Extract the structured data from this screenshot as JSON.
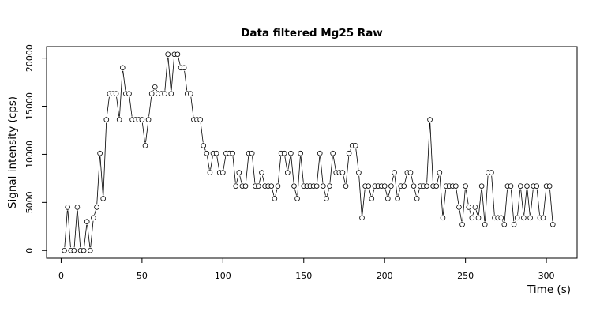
{
  "chart_data": {
    "type": "line",
    "title": "Data filtered Mg25 Raw",
    "xlabel": "Time (s)",
    "ylabel": "Signal intensity (cps)",
    "xlim": [
      -9,
      319
    ],
    "ylim": [
      -800,
      21200
    ],
    "xticks": [
      0,
      50,
      100,
      150,
      200,
      250,
      300
    ],
    "yticks": [
      0,
      5000,
      10000,
      15000,
      20000
    ],
    "grid": false,
    "marker": "open-circle",
    "line_style": "overplotted (type b)",
    "series": [
      {
        "x": [
          2,
          4,
          6,
          8,
          10,
          12,
          14,
          16,
          18,
          20,
          22,
          24,
          26,
          28,
          30,
          32,
          34,
          36,
          38,
          40,
          42,
          44,
          46,
          48,
          50,
          52,
          54,
          56,
          58,
          60,
          62,
          64,
          66,
          68,
          70,
          72,
          74,
          76,
          78,
          80,
          82,
          84,
          86,
          88,
          90,
          92,
          94,
          96,
          98,
          100,
          102,
          104,
          106,
          108,
          110,
          112,
          114,
          116,
          118,
          120,
          122,
          124,
          126,
          128,
          130,
          132,
          134,
          136,
          138,
          140,
          142,
          144,
          146,
          148,
          150,
          152,
          154,
          156,
          158,
          160,
          162,
          164,
          166,
          168,
          170,
          172,
          174,
          176,
          178,
          180,
          182,
          184,
          186,
          188,
          190,
          192,
          194,
          196,
          198,
          200,
          202,
          204,
          206,
          208,
          210,
          212,
          214,
          216,
          218,
          220,
          222,
          224,
          226,
          228,
          230,
          232,
          234,
          236,
          238,
          240,
          242,
          244,
          246,
          248,
          250,
          252,
          254,
          256,
          258,
          260,
          262,
          264,
          266,
          268,
          270,
          272,
          274,
          276,
          278,
          280,
          282,
          284,
          286,
          288,
          290,
          292,
          294,
          296,
          298,
          300,
          302,
          304
        ],
        "y": [
          0,
          4500,
          0,
          0,
          4500,
          0,
          0,
          3000,
          0,
          3400,
          4500,
          10100,
          5400,
          13600,
          16300,
          16300,
          16300,
          13600,
          19000,
          16300,
          16300,
          13600,
          13600,
          13600,
          13600,
          10900,
          13600,
          16300,
          17000,
          16300,
          16300,
          16300,
          20400,
          16300,
          20400,
          20400,
          19000,
          19000,
          16300,
          16300,
          13600,
          13600,
          13600,
          10900,
          10100,
          8100,
          10100,
          10100,
          8100,
          8100,
          10100,
          10100,
          10100,
          6700,
          8100,
          6700,
          6700,
          10100,
          10100,
          6700,
          6700,
          8100,
          6700,
          6700,
          6700,
          5400,
          6700,
          10100,
          10100,
          8100,
          10100,
          6700,
          5400,
          10100,
          6700,
          6700,
          6700,
          6700,
          6700,
          10100,
          6700,
          5400,
          6700,
          10100,
          8100,
          8100,
          8100,
          6700,
          10100,
          10900,
          10900,
          8100,
          3400,
          6700,
          6700,
          5400,
          6700,
          6700,
          6700,
          6700,
          5400,
          6700,
          8100,
          5400,
          6700,
          6700,
          8100,
          8100,
          6700,
          5400,
          6700,
          6700,
          6700,
          13600,
          6700,
          6700,
          8100,
          3400,
          6700,
          6700,
          6700,
          6700,
          4500,
          2700,
          6700,
          4500,
          3400,
          4500,
          3400,
          6700,
          2700,
          8100,
          8100,
          3400,
          3400,
          3400,
          2700,
          6700,
          6700,
          2700,
          3400,
          6700,
          3400,
          6700,
          3400,
          6700,
          6700,
          3400,
          3400,
          6700,
          6700,
          2700
        ]
      }
    ]
  }
}
